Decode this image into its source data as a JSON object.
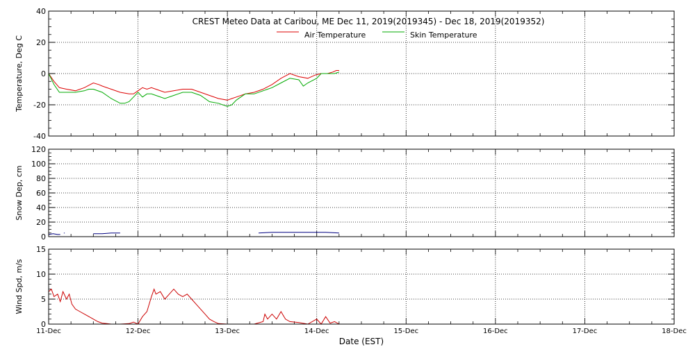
{
  "chart_data": {
    "title": "CREST Meteo Data at Caribou, ME   Dec 11, 2019(2019345) - Dec 18, 2019(2019352)",
    "xlabel": "Date (EST)",
    "x_ticks": [
      "11-Dec",
      "12-Dec",
      "13-Dec",
      "14-Dec",
      "15-Dec",
      "16-Dec",
      "17-Dec",
      "18-Dec"
    ],
    "xlim": [
      0,
      7
    ],
    "grid": true,
    "panels": [
      {
        "type": "line",
        "ylabel": "Temperature, Deg C",
        "ylim": [
          -40,
          40
        ],
        "y_ticks": [
          -40,
          -20,
          0,
          20,
          40
        ],
        "legend_position": "top-center",
        "series": [
          {
            "name": "Air Temperature",
            "color": "#dd0000",
            "x": [
              0.0,
              0.06,
              0.12,
              0.2,
              0.3,
              0.4,
              0.5,
              0.56,
              0.6,
              0.7,
              0.8,
              0.9,
              0.95,
              1.0,
              1.05,
              1.1,
              1.15,
              1.2,
              1.3,
              1.4,
              1.5,
              1.6,
              1.7,
              1.8,
              1.9,
              2.0,
              2.05,
              2.1,
              2.2,
              2.3,
              2.4,
              2.5,
              2.6,
              2.7,
              2.8,
              2.9,
              2.98,
              3.05,
              3.12,
              3.18,
              3.22,
              3.25
            ],
            "values": [
              0,
              -5,
              -9,
              -10,
              -11,
              -9,
              -6,
              -7,
              -8,
              -10,
              -12,
              -13,
              -13,
              -11,
              -9,
              -10,
              -9,
              -10,
              -12,
              -11,
              -10,
              -10,
              -12,
              -14,
              -16,
              -17,
              -16,
              -15,
              -13,
              -12,
              -10,
              -7,
              -3,
              0,
              -2,
              -3,
              -1,
              0,
              0,
              1,
              2,
              2
            ]
          },
          {
            "name": "Skin Temperature",
            "color": "#00aa00",
            "x": [
              0.0,
              0.06,
              0.12,
              0.2,
              0.3,
              0.4,
              0.45,
              0.5,
              0.6,
              0.7,
              0.8,
              0.85,
              0.9,
              0.95,
              1.0,
              1.05,
              1.1,
              1.15,
              1.2,
              1.3,
              1.4,
              1.5,
              1.6,
              1.7,
              1.8,
              1.9,
              2.0,
              2.05,
              2.1,
              2.2,
              2.3,
              2.4,
              2.5,
              2.6,
              2.7,
              2.8,
              2.85,
              2.9,
              3.0,
              3.05,
              3.12,
              3.2,
              3.25
            ],
            "values": [
              0,
              -7,
              -12,
              -12,
              -12,
              -11,
              -10,
              -10,
              -12,
              -16,
              -19,
              -19,
              -18,
              -15,
              -12,
              -15,
              -13,
              -13,
              -14,
              -16,
              -14,
              -12,
              -12,
              -14,
              -18,
              -19,
              -21,
              -20,
              -17,
              -13,
              -13,
              -11,
              -9,
              -6,
              -3,
              -4,
              -8,
              -6,
              -3,
              0,
              0,
              0,
              1
            ]
          }
        ]
      },
      {
        "type": "line",
        "ylabel": "Snow Dep, cm",
        "ylim": [
          0,
          120
        ],
        "y_ticks": [
          0,
          20,
          40,
          60,
          80,
          100,
          120
        ],
        "series": [
          {
            "name": "Snow Depth",
            "color": "#000080",
            "segments": [
              {
                "x": [
                  0.0,
                  0.05,
                  0.1,
                  0.13
                ],
                "values": [
                  3,
                  4,
                  3,
                  3
                ]
              },
              {
                "x": [
                  0.17,
                  0.18
                ],
                "values": [
                  5,
                  5
                ]
              },
              {
                "x": [
                  0.5,
                  0.6,
                  0.7,
                  0.8
                ],
                "values": [
                  4,
                  4,
                  5,
                  5
                ]
              },
              {
                "x": [
                  2.35,
                  2.5,
                  2.7,
                  2.9,
                  3.1,
                  3.25
                ],
                "values": [
                  5,
                  6,
                  6,
                  6,
                  6,
                  5
                ]
              }
            ]
          }
        ]
      },
      {
        "type": "line",
        "ylabel": "Wind Spd, m/s",
        "ylim": [
          0,
          15
        ],
        "y_ticks": [
          0,
          5,
          10,
          15
        ],
        "series": [
          {
            "name": "Wind Speed",
            "color": "#cc0000",
            "x": [
              0.0,
              0.03,
              0.06,
              0.1,
              0.13,
              0.16,
              0.2,
              0.23,
              0.26,
              0.3,
              0.35,
              0.4,
              0.45,
              0.5,
              0.55,
              0.6,
              0.65,
              0.7,
              0.75,
              0.8,
              0.9,
              0.95,
              1.0,
              1.05,
              1.1,
              1.15,
              1.18,
              1.2,
              1.25,
              1.3,
              1.35,
              1.4,
              1.45,
              1.5,
              1.55,
              1.6,
              1.65,
              1.7,
              1.75,
              1.8,
              1.85,
              1.9,
              2.0,
              2.1,
              2.2,
              2.3,
              2.4,
              2.42,
              2.45,
              2.5,
              2.55,
              2.6,
              2.65,
              2.7,
              2.8,
              2.9,
              3.0,
              3.05,
              3.1,
              3.15,
              3.2,
              3.25
            ],
            "values": [
              6.5,
              7.0,
              5.5,
              6.0,
              4.5,
              6.5,
              5.0,
              6.0,
              4.0,
              3.0,
              2.5,
              2.0,
              1.5,
              1.0,
              0.5,
              0.2,
              0.1,
              0.0,
              0.0,
              0.0,
              0.1,
              0.4,
              0.0,
              1.5,
              2.5,
              5.5,
              7.0,
              6.0,
              6.5,
              5.0,
              6.0,
              7.0,
              6.0,
              5.5,
              6.0,
              5.0,
              4.0,
              3.0,
              2.0,
              1.0,
              0.5,
              0.1,
              0.0,
              0.0,
              0.0,
              0.0,
              0.5,
              2.0,
              1.0,
              2.0,
              1.0,
              2.5,
              1.0,
              0.5,
              0.3,
              0.0,
              1.0,
              0.0,
              1.5,
              0.2,
              0.5,
              0.0
            ]
          }
        ]
      }
    ]
  }
}
